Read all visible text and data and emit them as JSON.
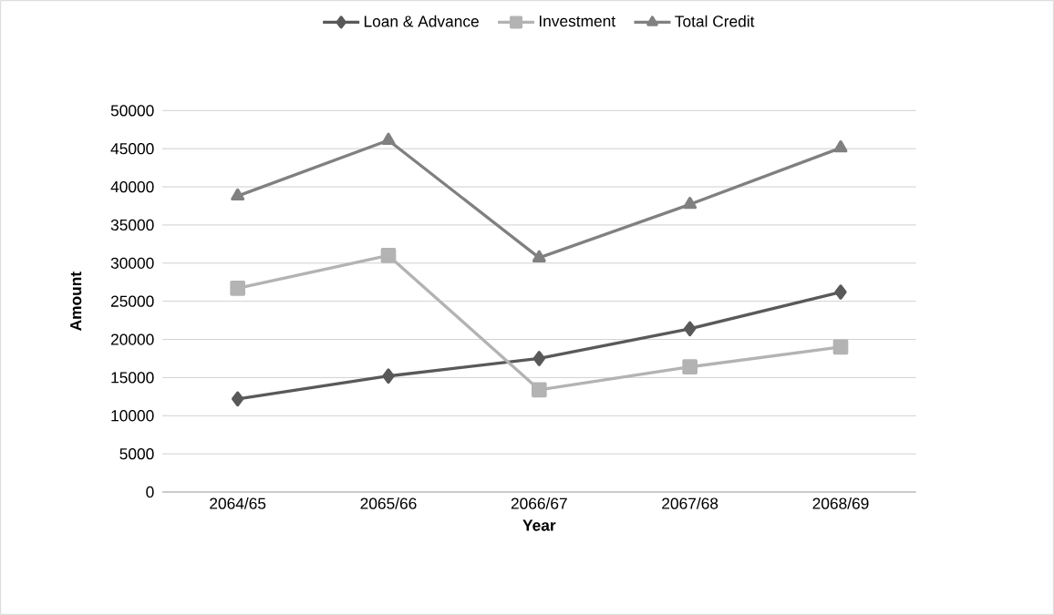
{
  "chart_data": {
    "type": "line",
    "xlabel": "Year",
    "ylabel": "Amount",
    "categories": [
      "2064/65",
      "2065/66",
      "2066/67",
      "2067/68",
      "2068/69"
    ],
    "series": [
      {
        "name": "Loan & Advance",
        "color": "#595959",
        "marker": "diamond",
        "values": [
          12200,
          15200,
          17500,
          21400,
          26200
        ]
      },
      {
        "name": "Investment",
        "color": "#b3b3b3",
        "marker": "square",
        "values": [
          26700,
          31000,
          13400,
          16400,
          19000
        ]
      },
      {
        "name": "Total Credit",
        "color": "#808080",
        "marker": "triangle",
        "values": [
          38800,
          46100,
          30700,
          37700,
          45100
        ]
      }
    ],
    "ylim": [
      0,
      50000
    ],
    "yticks": [
      0,
      5000,
      10000,
      15000,
      20000,
      25000,
      30000,
      35000,
      40000,
      45000,
      50000
    ],
    "grid": "y",
    "legend": "top"
  }
}
